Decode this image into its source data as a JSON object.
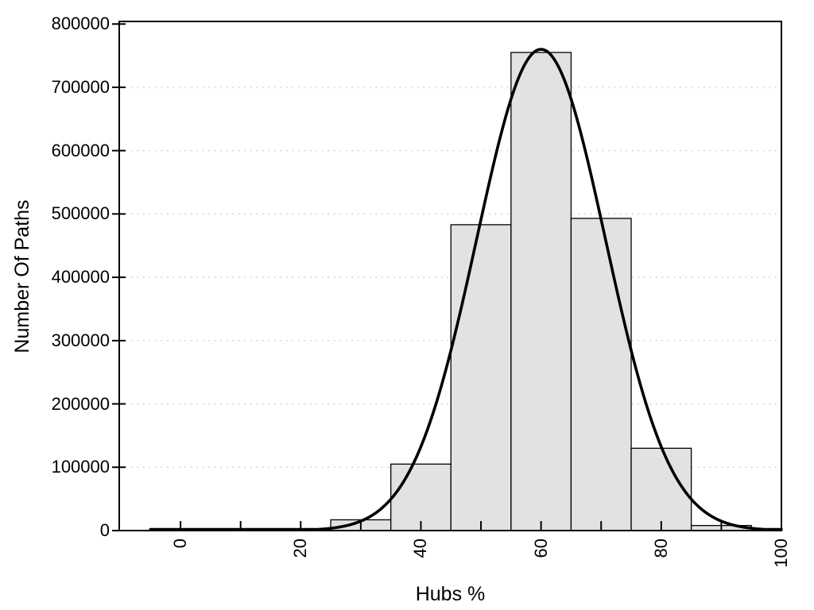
{
  "chart_data": {
    "type": "bar",
    "subtype": "histogram-with-fit-curve",
    "title": "",
    "xlabel": "Hubs %",
    "ylabel": "Number Of Paths",
    "xlim": [
      -10.2,
      100
    ],
    "ylim": [
      0,
      804000
    ],
    "x_major_ticks": [
      0,
      20,
      40,
      60,
      80,
      100
    ],
    "x_minor_ticks": [
      10,
      30,
      50,
      70,
      90
    ],
    "y_ticks": [
      0,
      100000,
      200000,
      300000,
      400000,
      500000,
      600000,
      700000,
      800000
    ],
    "grid": "horizontal-dotted",
    "legend": "none",
    "bin_width": 10,
    "bins": [
      {
        "x0": 15,
        "x1": 25,
        "count": 2500
      },
      {
        "x0": 25,
        "x1": 35,
        "count": 17000
      },
      {
        "x0": 35,
        "x1": 45,
        "count": 105000
      },
      {
        "x0": 45,
        "x1": 55,
        "count": 483000
      },
      {
        "x0": 55,
        "x1": 65,
        "count": 755000
      },
      {
        "x0": 65,
        "x1": 75,
        "count": 493000
      },
      {
        "x0": 75,
        "x1": 85,
        "count": 130000
      },
      {
        "x0": 85,
        "x1": 95,
        "count": 8000
      }
    ],
    "fit_curve": {
      "shape": "gaussian",
      "mean": 60,
      "sigma": 10.7,
      "amplitude": 760000,
      "x_start": -5,
      "x_end": 100
    },
    "colors": {
      "background": "#ffffff",
      "bar_fill": "#e2e2e2",
      "bar_border": "#000000",
      "curve": "#000000",
      "grid": "#c0c0c0",
      "axis": "#000000",
      "text": "#000000"
    }
  }
}
